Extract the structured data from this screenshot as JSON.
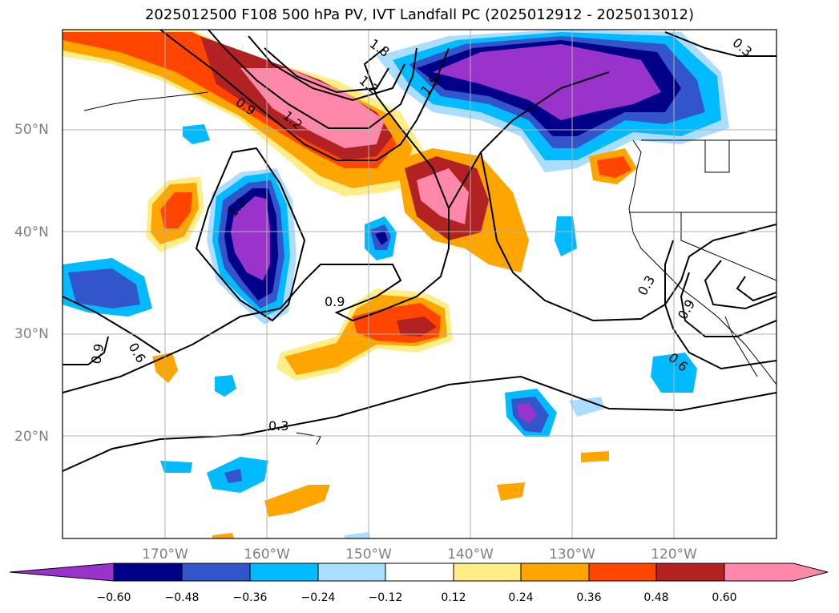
{
  "title": "2025012500 F108 500 hPa PV, IVT Landfall PC (2025012912 - 2025013012)",
  "map": {
    "lat_labels": [
      "50°N",
      "40°N",
      "30°N",
      "20°N"
    ],
    "lon_labels": [
      "170°W",
      "160°W",
      "150°W",
      "140°W",
      "130°W",
      "120°W"
    ],
    "contour_labels": [
      "0.3",
      "0.6",
      "0.9",
      "1.2",
      "1.5",
      "1.8",
      "1.2",
      "1.2",
      "0.9",
      "0.9",
      "0.6",
      "0.9",
      "0.6",
      "0.3",
      "0.3",
      "0.6",
      "0.9",
      "0.3"
    ]
  },
  "colorbar": {
    "ticks": [
      "−0.60",
      "−0.48",
      "−0.36",
      "−0.24",
      "−0.12",
      "0.12",
      "0.24",
      "0.36",
      "0.48",
      "0.60"
    ],
    "colors": [
      "#9933cc",
      "#000088",
      "#3355cc",
      "#00bbff",
      "#aaddff",
      "#ffffff",
      "#ffee88",
      "#ffa500",
      "#ff4500",
      "#b22222",
      "#ff88aa",
      "#ff88aa"
    ]
  }
}
